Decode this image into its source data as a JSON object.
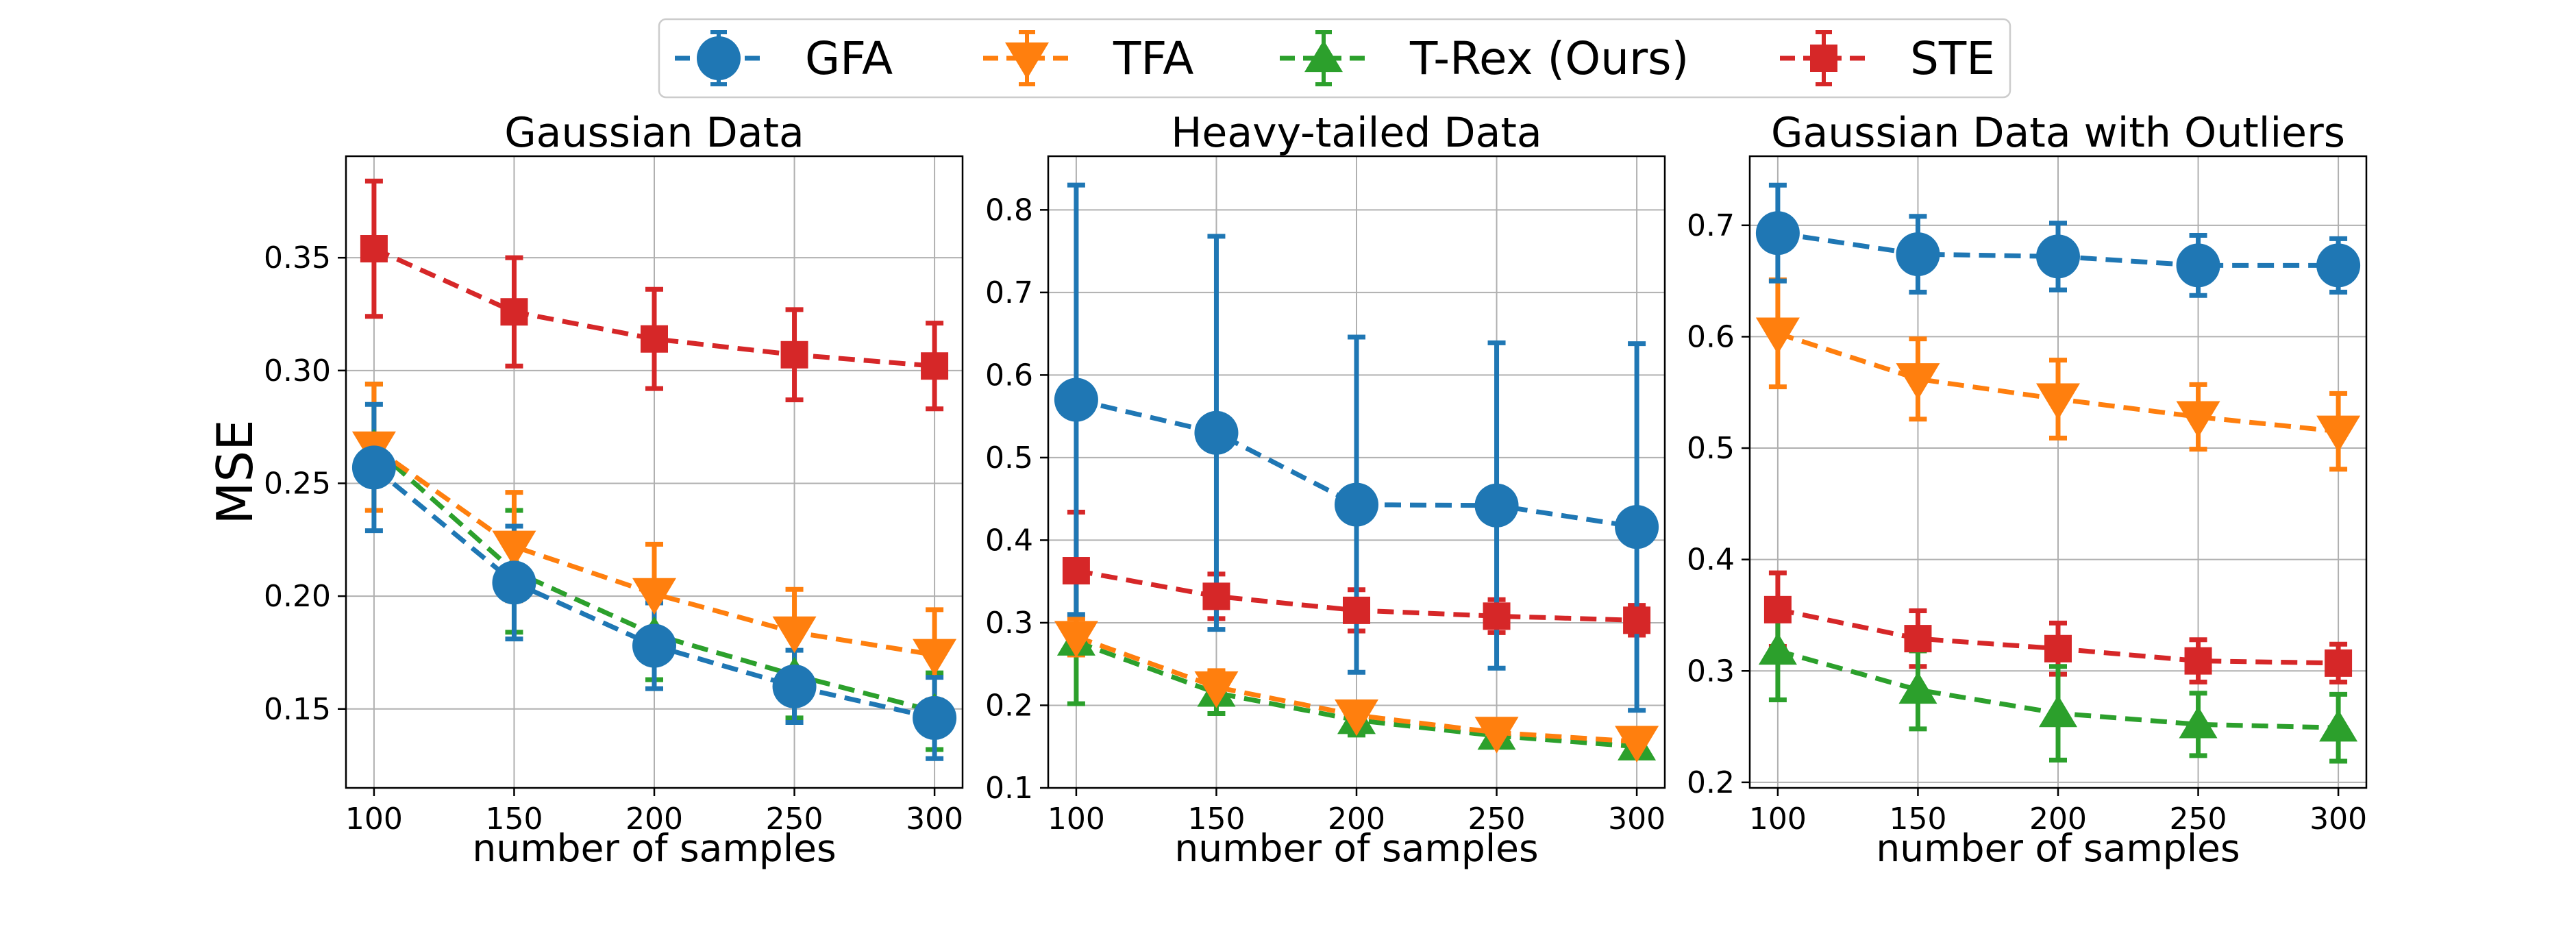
{
  "chart_data": [
    {
      "type": "line",
      "title": "Gaussian Data",
      "xlabel": "number of samples",
      "ylabel": "MSE",
      "x": [
        100,
        150,
        200,
        250,
        300
      ],
      "xlim": [
        90,
        310
      ],
      "ylim": [
        0.115,
        0.395
      ],
      "yticks": [
        0.15,
        0.2,
        0.25,
        0.3,
        0.35
      ],
      "grid": true,
      "series": [
        {
          "name": "GFA",
          "values": [
            0.257,
            0.206,
            0.178,
            0.16,
            0.146
          ],
          "errors": [
            0.028,
            0.025,
            0.019,
            0.016,
            0.018
          ]
        },
        {
          "name": "TFA",
          "values": [
            0.266,
            0.222,
            0.201,
            0.184,
            0.174
          ],
          "errors": [
            0.028,
            0.024,
            0.022,
            0.019,
            0.02
          ]
        },
        {
          "name": "T-Rex (Ours)",
          "values": [
            0.266,
            0.211,
            0.183,
            0.165,
            0.149
          ],
          "errors": [
            0.028,
            0.027,
            0.02,
            0.019,
            0.017
          ]
        },
        {
          "name": "STE",
          "values": [
            0.354,
            0.326,
            0.314,
            0.307,
            0.302
          ],
          "errors": [
            0.03,
            0.024,
            0.022,
            0.02,
            0.019
          ]
        }
      ]
    },
    {
      "type": "line",
      "title": "Heavy-tailed Data",
      "xlabel": "number of samples",
      "ylabel": "",
      "x": [
        100,
        150,
        200,
        250,
        300
      ],
      "xlim": [
        90,
        310
      ],
      "ylim": [
        0.1,
        0.865
      ],
      "yticks": [
        0.1,
        0.2,
        0.3,
        0.4,
        0.5,
        0.6,
        0.7,
        0.8
      ],
      "grid": true,
      "series": [
        {
          "name": "GFA",
          "values": [
            0.57,
            0.53,
            0.443,
            0.442,
            0.416
          ],
          "errors": [
            0.26,
            0.238,
            0.203,
            0.197,
            0.222
          ]
        },
        {
          "name": "TFA",
          "values": [
            0.283,
            0.222,
            0.188,
            0.167,
            0.156
          ],
          "errors": [
            0.022,
            0.02,
            0.015,
            0.012,
            0.01
          ]
        },
        {
          "name": "T-Rex (Ours)",
          "values": [
            0.277,
            0.215,
            0.182,
            0.163,
            0.15
          ],
          "errors": [
            0.075,
            0.025,
            0.018,
            0.013,
            0.012
          ]
        },
        {
          "name": "STE",
          "values": [
            0.363,
            0.332,
            0.315,
            0.308,
            0.303
          ],
          "errors": [
            0.071,
            0.027,
            0.025,
            0.02,
            0.018
          ]
        }
      ]
    },
    {
      "type": "line",
      "title": "Gaussian Data with Outliers",
      "xlabel": "number of samples",
      "ylabel": "",
      "x": [
        100,
        150,
        200,
        250,
        300
      ],
      "xlim": [
        90,
        310
      ],
      "ylim": [
        0.195,
        0.762
      ],
      "yticks": [
        0.2,
        0.3,
        0.4,
        0.5,
        0.6,
        0.7
      ],
      "grid": true,
      "series": [
        {
          "name": "GFA",
          "values": [
            0.693,
            0.674,
            0.672,
            0.664,
            0.664
          ],
          "errors": [
            0.043,
            0.034,
            0.03,
            0.027,
            0.024
          ]
        },
        {
          "name": "TFA",
          "values": [
            0.603,
            0.562,
            0.544,
            0.528,
            0.515
          ],
          "errors": [
            0.048,
            0.036,
            0.035,
            0.029,
            0.034
          ]
        },
        {
          "name": "T-Rex (Ours)",
          "values": [
            0.318,
            0.283,
            0.262,
            0.252,
            0.249
          ],
          "errors": [
            0.044,
            0.035,
            0.042,
            0.028,
            0.03
          ]
        },
        {
          "name": "STE",
          "values": [
            0.355,
            0.329,
            0.32,
            0.309,
            0.307
          ],
          "errors": [
            0.033,
            0.025,
            0.023,
            0.019,
            0.017
          ]
        }
      ]
    }
  ],
  "legend": {
    "placement": "top-center",
    "entries": [
      {
        "name": "GFA",
        "color": "#1f77b4",
        "marker": "circle"
      },
      {
        "name": "TFA",
        "color": "#ff7f0e",
        "marker": "triangle-down"
      },
      {
        "name": "T-Rex (Ours)",
        "color": "#2ca02c",
        "marker": "triangle-up"
      },
      {
        "name": "STE",
        "color": "#d62728",
        "marker": "square"
      }
    ]
  }
}
